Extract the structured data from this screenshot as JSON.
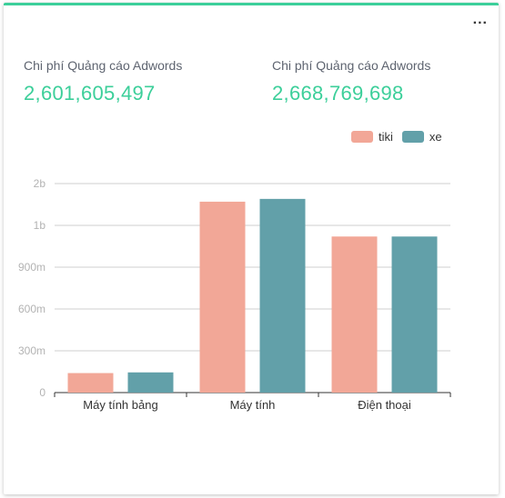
{
  "menu_label": "...",
  "stats": [
    {
      "label": "Chi phí Quảng cáo Adwords",
      "value": "2,601,605,497"
    },
    {
      "label": "Chi phí Quảng cáo Adwords",
      "value": "2,668,769,698"
    }
  ],
  "colors": {
    "tiki": "#f2a797",
    "xe": "#62a0a9",
    "accent": "#3ccf9a"
  },
  "chart_data": {
    "type": "bar",
    "categories": [
      "Máy tính bảng",
      "Máy tính",
      "Điện thoại"
    ],
    "series": [
      {
        "name": "tiki",
        "values": [
          140000000,
          1370000000,
          1120000000
        ]
      },
      {
        "name": "xe",
        "values": [
          145000000,
          1390000000,
          1120000000
        ]
      }
    ],
    "y_ticks": [
      {
        "value": 0,
        "label": "0"
      },
      {
        "value": 300000000,
        "label": "300m"
      },
      {
        "value": 600000000,
        "label": "600m"
      },
      {
        "value": 900000000,
        "label": "900m"
      },
      {
        "value": 1200000000,
        "label": "1b"
      },
      {
        "value": 1500000000,
        "label": "2b"
      }
    ],
    "ylim": [
      0,
      1500000000
    ],
    "grid": true,
    "legend": "top-right"
  }
}
